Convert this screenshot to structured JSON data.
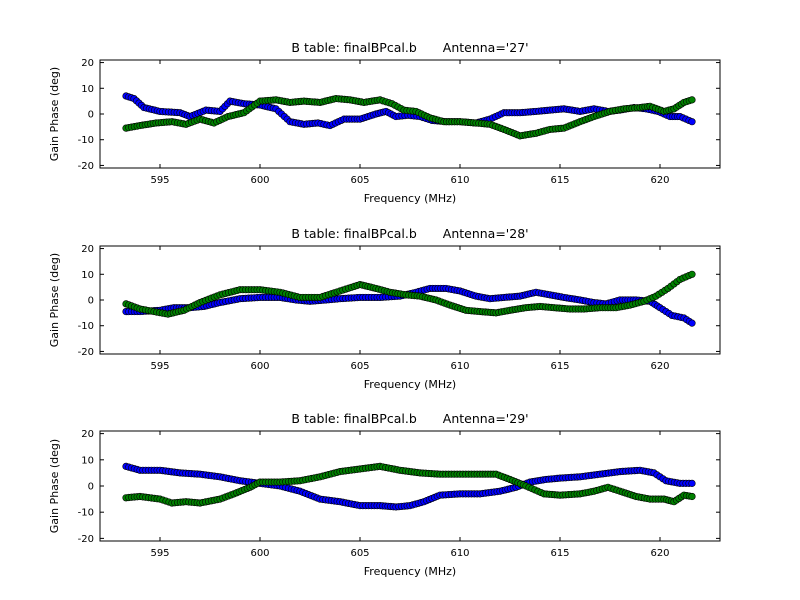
{
  "colors": {
    "series_blue": "#0000ff",
    "series_green": "#008000",
    "marker_edge": "#000000",
    "axes": "#000000"
  },
  "chart_data": [
    {
      "type": "scatter",
      "title_prefix": "B table: finalBPcal.b",
      "title_antenna": "Antenna='27'",
      "xlabel": "Frequency (MHz)",
      "ylabel": "Gain Phase (deg)",
      "xlim": [
        592,
        623
      ],
      "ylim": [
        -21,
        21
      ],
      "xticks": [
        595,
        600,
        605,
        610,
        615,
        620
      ],
      "yticks": [
        -20,
        -10,
        0,
        10,
        20
      ],
      "series": [
        {
          "color": "blue",
          "points": [
            [
              593.3,
              7
            ],
            [
              593.7,
              6
            ],
            [
              594.2,
              2.5
            ],
            [
              595,
              1
            ],
            [
              596,
              0.5
            ],
            [
              596.5,
              -1
            ],
            [
              597.3,
              1.5
            ],
            [
              598,
              1
            ],
            [
              598.5,
              5
            ],
            [
              599.2,
              4
            ],
            [
              600,
              3.5
            ],
            [
              600.8,
              2
            ],
            [
              601.5,
              -3
            ],
            [
              602.2,
              -4
            ],
            [
              602.9,
              -3.5
            ],
            [
              603.5,
              -4.5
            ],
            [
              604.2,
              -2
            ],
            [
              605,
              -2
            ],
            [
              605.8,
              0
            ],
            [
              606.3,
              1
            ],
            [
              606.8,
              -1
            ],
            [
              607.4,
              -0.5
            ],
            [
              608,
              -1
            ],
            [
              608.6,
              -2.5
            ],
            [
              609.3,
              -3
            ],
            [
              610,
              -3
            ],
            [
              610.8,
              -3.5
            ],
            [
              611.5,
              -2
            ],
            [
              612.2,
              0.5
            ],
            [
              613,
              0.5
            ],
            [
              613.8,
              1
            ],
            [
              614.5,
              1.5
            ],
            [
              615.2,
              2
            ],
            [
              616,
              1
            ],
            [
              616.7,
              2
            ],
            [
              617.4,
              1
            ],
            [
              618,
              1.5
            ],
            [
              618.7,
              2.5
            ],
            [
              619.3,
              2
            ],
            [
              619.9,
              1
            ],
            [
              620.5,
              -1
            ],
            [
              621,
              -1
            ],
            [
              621.6,
              -3
            ]
          ]
        },
        {
          "color": "green",
          "points": [
            [
              593.3,
              -5.5
            ],
            [
              594,
              -4.5
            ],
            [
              594.8,
              -3.5
            ],
            [
              595.6,
              -3
            ],
            [
              596.3,
              -4
            ],
            [
              597,
              -2
            ],
            [
              597.7,
              -3.5
            ],
            [
              598.4,
              -1
            ],
            [
              599.2,
              0.5
            ],
            [
              600,
              5
            ],
            [
              600.8,
              5.5
            ],
            [
              601.5,
              4.5
            ],
            [
              602.2,
              5
            ],
            [
              603,
              4.5
            ],
            [
              603.8,
              6
            ],
            [
              604.5,
              5.5
            ],
            [
              605.2,
              4.5
            ],
            [
              606,
              5.5
            ],
            [
              606.6,
              4
            ],
            [
              607.2,
              1.5
            ],
            [
              607.8,
              1
            ],
            [
              608.5,
              -1.5
            ],
            [
              609.2,
              -3
            ],
            [
              610,
              -3
            ],
            [
              610.8,
              -3.5
            ],
            [
              611.5,
              -4
            ],
            [
              612.2,
              -6
            ],
            [
              613,
              -8.5
            ],
            [
              613.8,
              -7.5
            ],
            [
              614.5,
              -6
            ],
            [
              615.2,
              -5.5
            ],
            [
              616,
              -3
            ],
            [
              616.7,
              -1
            ],
            [
              617.5,
              1
            ],
            [
              618.2,
              2
            ],
            [
              619,
              2.5
            ],
            [
              619.5,
              3
            ],
            [
              620.2,
              1
            ],
            [
              620.7,
              2
            ],
            [
              621.2,
              4.5
            ],
            [
              621.6,
              5.5
            ]
          ]
        }
      ]
    },
    {
      "type": "scatter",
      "title_prefix": "B table: finalBPcal.b",
      "title_antenna": "Antenna='28'",
      "xlabel": "Frequency (MHz)",
      "ylabel": "Gain Phase (deg)",
      "xlim": [
        592,
        623
      ],
      "ylim": [
        -21,
        21
      ],
      "xticks": [
        595,
        600,
        605,
        610,
        615,
        620
      ],
      "yticks": [
        -20,
        -10,
        0,
        10,
        20
      ],
      "series": [
        {
          "color": "blue",
          "points": [
            [
              593.3,
              -4.5
            ],
            [
              594,
              -4.5
            ],
            [
              595,
              -4
            ],
            [
              595.7,
              -3
            ],
            [
              596.5,
              -3
            ],
            [
              597.2,
              -2.5
            ],
            [
              598,
              -1
            ],
            [
              599,
              0.5
            ],
            [
              600,
              1
            ],
            [
              601,
              1
            ],
            [
              601.8,
              0
            ],
            [
              602.5,
              -0.5
            ],
            [
              603.3,
              0
            ],
            [
              604,
              0.5
            ],
            [
              605,
              1
            ],
            [
              606,
              1
            ],
            [
              607,
              1.5
            ],
            [
              607.8,
              3
            ],
            [
              608.5,
              4.5
            ],
            [
              609.3,
              4.5
            ],
            [
              610,
              3.5
            ],
            [
              610.8,
              1.5
            ],
            [
              611.5,
              0.5
            ],
            [
              612.2,
              1
            ],
            [
              613,
              1.5
            ],
            [
              613.8,
              3
            ],
            [
              614.5,
              2
            ],
            [
              615.2,
              1
            ],
            [
              616,
              0
            ],
            [
              616.7,
              -1
            ],
            [
              617.3,
              -1.5
            ],
            [
              618,
              0
            ],
            [
              618.8,
              0
            ],
            [
              619.5,
              -0.5
            ],
            [
              620,
              -3
            ],
            [
              620.6,
              -6
            ],
            [
              621.2,
              -7
            ],
            [
              621.6,
              -9
            ]
          ]
        },
        {
          "color": "green",
          "points": [
            [
              593.3,
              -1.5
            ],
            [
              594,
              -3.5
            ],
            [
              594.7,
              -4.5
            ],
            [
              595.4,
              -5.5
            ],
            [
              596.2,
              -4
            ],
            [
              597,
              -1
            ],
            [
              598,
              2
            ],
            [
              599,
              4
            ],
            [
              600,
              4
            ],
            [
              601,
              3
            ],
            [
              602,
              1
            ],
            [
              603,
              1
            ],
            [
              604,
              3.5
            ],
            [
              605,
              6
            ],
            [
              605.8,
              4.5
            ],
            [
              606.5,
              3
            ],
            [
              607.3,
              2
            ],
            [
              608,
              1.5
            ],
            [
              608.8,
              0
            ],
            [
              609.5,
              -2
            ],
            [
              610.3,
              -4
            ],
            [
              611,
              -4.5
            ],
            [
              611.8,
              -5
            ],
            [
              612.5,
              -4
            ],
            [
              613.3,
              -3
            ],
            [
              614,
              -2.5
            ],
            [
              614.7,
              -3
            ],
            [
              615.5,
              -3.5
            ],
            [
              616.2,
              -3.5
            ],
            [
              617,
              -3
            ],
            [
              617.8,
              -3
            ],
            [
              618.5,
              -2
            ],
            [
              619.2,
              -0.5
            ],
            [
              619.8,
              1.5
            ],
            [
              620.4,
              4.5
            ],
            [
              621,
              8
            ],
            [
              621.6,
              10
            ]
          ]
        }
      ]
    },
    {
      "type": "scatter",
      "title_prefix": "B table: finalBPcal.b",
      "title_antenna": "Antenna='29'",
      "xlabel": "Frequency (MHz)",
      "ylabel": "Gain Phase (deg)",
      "xlim": [
        592,
        623
      ],
      "ylim": [
        -21,
        21
      ],
      "xticks": [
        595,
        600,
        605,
        610,
        615,
        620
      ],
      "yticks": [
        -20,
        -10,
        0,
        10,
        20
      ],
      "series": [
        {
          "color": "blue",
          "points": [
            [
              593.3,
              7.5
            ],
            [
              594,
              6
            ],
            [
              595,
              6
            ],
            [
              596,
              5
            ],
            [
              597,
              4.5
            ],
            [
              598,
              3.5
            ],
            [
              599,
              2
            ],
            [
              600,
              1
            ],
            [
              601,
              0
            ],
            [
              602,
              -2
            ],
            [
              603,
              -5
            ],
            [
              604,
              -6
            ],
            [
              605,
              -7.5
            ],
            [
              606,
              -7.5
            ],
            [
              606.8,
              -8
            ],
            [
              607.5,
              -7.5
            ],
            [
              608.2,
              -6
            ],
            [
              609,
              -3.5
            ],
            [
              610,
              -3
            ],
            [
              611,
              -3
            ],
            [
              612,
              -2
            ],
            [
              612.8,
              -0.5
            ],
            [
              613.5,
              1.5
            ],
            [
              614.3,
              2.5
            ],
            [
              615,
              3
            ],
            [
              616,
              3.5
            ],
            [
              617,
              4.5
            ],
            [
              618,
              5.5
            ],
            [
              619,
              6
            ],
            [
              619.7,
              5
            ],
            [
              620.3,
              2
            ],
            [
              621,
              1
            ],
            [
              621.6,
              1
            ]
          ]
        },
        {
          "color": "green",
          "points": [
            [
              593.3,
              -4.5
            ],
            [
              594,
              -4
            ],
            [
              595,
              -5
            ],
            [
              595.6,
              -6.5
            ],
            [
              596.3,
              -6
            ],
            [
              597,
              -6.5
            ],
            [
              598,
              -5
            ],
            [
              598.7,
              -3
            ],
            [
              599.5,
              -0.5
            ],
            [
              600,
              1.5
            ],
            [
              601,
              1.5
            ],
            [
              602,
              2
            ],
            [
              603,
              3.5
            ],
            [
              604,
              5.5
            ],
            [
              605,
              6.5
            ],
            [
              606,
              7.5
            ],
            [
              607,
              6
            ],
            [
              608,
              5
            ],
            [
              609,
              4.5
            ],
            [
              610,
              4.5
            ],
            [
              611,
              4.5
            ],
            [
              611.8,
              4.5
            ],
            [
              612.5,
              2.5
            ],
            [
              613.3,
              0
            ],
            [
              614.2,
              -3
            ],
            [
              615,
              -3.5
            ],
            [
              616,
              -3
            ],
            [
              616.7,
              -2
            ],
            [
              617.4,
              -0.5
            ],
            [
              618,
              -2
            ],
            [
              618.8,
              -4
            ],
            [
              619.5,
              -5
            ],
            [
              620.2,
              -5
            ],
            [
              620.7,
              -6
            ],
            [
              621.2,
              -3.5
            ],
            [
              621.6,
              -4
            ]
          ]
        }
      ]
    }
  ]
}
